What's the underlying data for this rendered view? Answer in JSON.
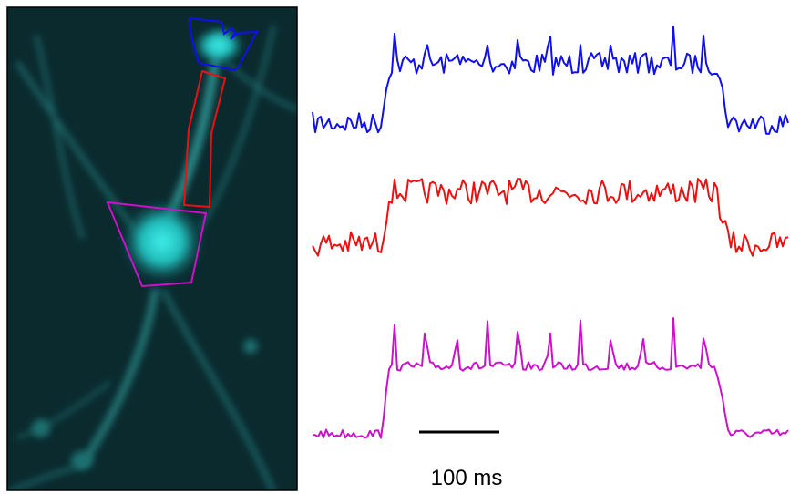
{
  "scale_bar": {
    "label": "100 ms"
  }
}
